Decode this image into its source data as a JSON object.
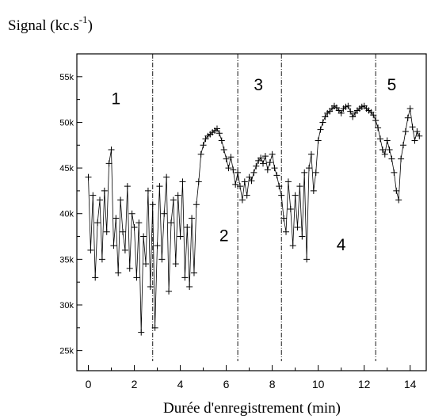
{
  "chart_data": {
    "type": "scatter",
    "ylabel": "Signal (kc.s",
    "ylabel_sup": "-1",
    "ylabel_close": ")",
    "xlabel": "Durée d'enregistrement (min)",
    "xlim": [
      -0.5,
      14.7
    ],
    "ylim": [
      22800,
      57500
    ],
    "x_ticks": [
      0,
      2,
      4,
      6,
      8,
      10,
      12,
      14
    ],
    "x_tick_labels": [
      "0",
      "2",
      "4",
      "6",
      "8",
      "10",
      "12",
      "14"
    ],
    "y_ticks": [
      25000,
      30000,
      35000,
      40000,
      45000,
      50000,
      55000
    ],
    "y_tick_labels": [
      "25k",
      "30k",
      "35k",
      "40k",
      "45k",
      "50k",
      "55k"
    ],
    "marker": "+",
    "connected": true,
    "color": "#000000",
    "phase_lines_x": [
      2.8,
      6.5,
      8.4,
      12.5
    ],
    "phase_labels": [
      {
        "text": "1",
        "x": 1.2,
        "y": 52000
      },
      {
        "text": "2",
        "x": 5.9,
        "y": 37000
      },
      {
        "text": "3",
        "x": 7.4,
        "y": 53500
      },
      {
        "text": "4",
        "x": 11.0,
        "y": 36000
      },
      {
        "text": "5",
        "x": 13.2,
        "y": 53500
      }
    ],
    "series": [
      {
        "x": [
          0,
          0.1,
          0.2,
          0.3,
          0.4,
          0.5,
          0.6,
          0.7,
          0.8,
          0.9,
          1,
          1.1,
          1.2,
          1.3,
          1.4,
          1.5,
          1.6,
          1.7,
          1.8,
          1.9,
          2,
          2.1,
          2.2,
          2.3,
          2.4,
          2.5,
          2.6,
          2.7,
          2.8,
          2.9,
          3,
          3.1,
          3.2,
          3.3,
          3.4,
          3.5,
          3.6,
          3.7,
          3.8,
          3.9,
          4,
          4.1,
          4.2,
          4.3,
          4.4,
          4.5,
          4.6,
          4.7,
          4.8,
          4.9,
          5,
          5.1,
          5.2,
          5.3,
          5.4,
          5.5,
          5.6,
          5.7,
          5.8,
          5.9,
          6,
          6.1,
          6.2,
          6.3,
          6.4,
          6.5,
          6.6,
          6.7,
          6.8,
          6.9,
          7,
          7.1,
          7.2,
          7.3,
          7.4,
          7.5,
          7.6,
          7.7,
          7.8,
          7.9,
          8,
          8.1,
          8.2,
          8.3,
          8.4,
          8.5,
          8.6,
          8.7,
          8.8,
          8.9,
          9,
          9.1,
          9.2,
          9.3,
          9.4,
          9.5,
          9.6,
          9.7,
          9.8,
          9.9,
          10,
          10.1,
          10.2,
          10.3,
          10.4,
          10.5,
          10.6,
          10.7,
          10.8,
          10.9,
          11,
          11.1,
          11.2,
          11.3,
          11.4,
          11.5,
          11.6,
          11.7,
          11.8,
          11.9,
          12,
          12.1,
          12.2,
          12.3,
          12.4,
          12.5,
          12.6,
          12.7,
          12.8,
          12.9,
          13,
          13.1,
          13.2,
          13.3,
          13.4,
          13.5,
          13.6,
          13.7,
          13.8,
          13.9,
          14,
          14.1,
          14.2,
          14.3,
          14.4
        ],
        "y": [
          44000,
          36000,
          42000,
          33000,
          39000,
          41500,
          35000,
          42500,
          38000,
          45500,
          47000,
          36500,
          39500,
          33500,
          41500,
          38000,
          36000,
          43000,
          34000,
          40000,
          38500,
          33000,
          39000,
          27000,
          37500,
          34500,
          42500,
          32000,
          41000,
          27500,
          36500,
          43000,
          35000,
          40000,
          44000,
          31500,
          39000,
          41500,
          34500,
          42000,
          37500,
          43500,
          33000,
          38500,
          32000,
          39500,
          33500,
          41000,
          43500,
          46500,
          47500,
          48200,
          48500,
          48700,
          48900,
          49100,
          49300,
          48800,
          48000,
          47000,
          46000,
          45000,
          46200,
          44800,
          43200,
          44500,
          43000,
          41500,
          43500,
          42000,
          44000,
          43600,
          44500,
          45200,
          45800,
          46100,
          45500,
          46300,
          44800,
          45600,
          46500,
          45000,
          44200,
          43000,
          42000,
          39500,
          38000,
          43500,
          40500,
          36500,
          42000,
          38500,
          43000,
          37500,
          44500,
          35000,
          45000,
          46500,
          42500,
          44500,
          48000,
          49200,
          50000,
          50600,
          51000,
          51200,
          51500,
          51800,
          51600,
          51300,
          51000,
          51500,
          51700,
          51800,
          51200,
          50600,
          51000,
          51300,
          51500,
          51700,
          51800,
          51500,
          51300,
          51100,
          50800,
          50200,
          49400,
          48200,
          47000,
          46500,
          48000,
          47000,
          46000,
          44500,
          42500,
          41500,
          46000,
          47500,
          49000,
          50500,
          51500,
          49500,
          48000,
          49000,
          48500
        ]
      }
    ]
  }
}
